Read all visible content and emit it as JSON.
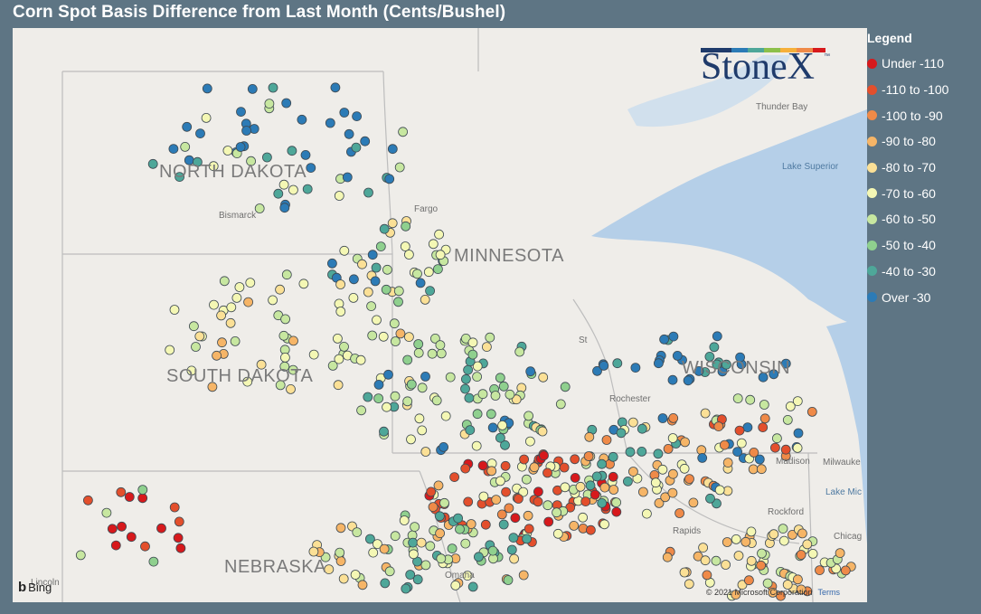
{
  "title": "Corn Spot Basis Difference from Last Month (Cents/Bushel)",
  "brand": {
    "name": "StoneX",
    "tm": "™"
  },
  "map": {
    "states": [
      {
        "name": "NORTH DAKOTA"
      },
      {
        "name": "MINNESOTA"
      },
      {
        "name": "SOUTH DAKOTA"
      },
      {
        "name": "WISCONSIN"
      },
      {
        "name": "NEBRASKA"
      }
    ],
    "cities": [
      {
        "name": "Bismarck"
      },
      {
        "name": "Fargo"
      },
      {
        "name": "Thunder Bay"
      },
      {
        "name": "St"
      },
      {
        "name": "Rochester"
      },
      {
        "name": "Madison"
      },
      {
        "name": "Milwauke"
      },
      {
        "name": "Rockford"
      },
      {
        "name": "Rapids"
      },
      {
        "name": "Chicag"
      },
      {
        "name": "Omaha"
      },
      {
        "name": "Lincoln"
      }
    ],
    "water": [
      {
        "name": "Lake Superior"
      },
      {
        "name": "Lake Mic"
      }
    ],
    "attribution": {
      "bing": "Bing",
      "copyright": "© 2021 Microsoft Corporation",
      "terms": "Terms"
    }
  },
  "legend": {
    "title": "Legend",
    "items": [
      {
        "label": "Under -110",
        "color": "#d7191c"
      },
      {
        "label": "-110 to -100",
        "color": "#e34f2c"
      },
      {
        "label": "-100 to -90",
        "color": "#ef8a48"
      },
      {
        "label": "-90 to -80",
        "color": "#f6b567"
      },
      {
        "label": "-80 to -70",
        "color": "#fbe096"
      },
      {
        "label": "-70 to -60",
        "color": "#f4f7b4"
      },
      {
        "label": "-60 to -50",
        "color": "#c7e7a0"
      },
      {
        "label": "-50 to -40",
        "color": "#8fd08e"
      },
      {
        "label": "-40 to -30",
        "color": "#4ea799"
      },
      {
        "label": "Over -30",
        "color": "#2c7bb6"
      }
    ]
  },
  "colors": {
    "background": "#5e7584",
    "land": "#efede9",
    "water": "#b5cfe8",
    "brand": "#1f3b6b"
  }
}
